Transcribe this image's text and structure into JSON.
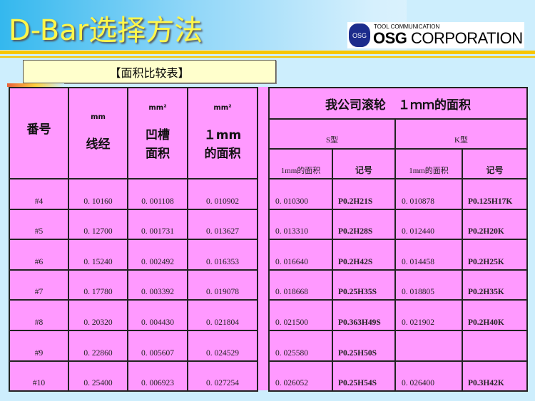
{
  "header": {
    "title": "D-Bar选择方法",
    "logo_sub": "TOOL COMMUNICATION",
    "logo_brand": "OSG",
    "logo_company": "CORPORATION",
    "logo_mark": "OSG"
  },
  "subtitle": "【面积比较表】",
  "left_table": {
    "headers": [
      {
        "unit": "",
        "label": "番号"
      },
      {
        "unit": "mm",
        "label": "线经"
      },
      {
        "unit": "mm²",
        "label": "凹槽\n面积"
      },
      {
        "unit": "mm²",
        "label": "１mm\n的面积"
      }
    ],
    "rows": [
      [
        "#4",
        "0. 10160",
        "0. 001108",
        "0. 010902"
      ],
      [
        "#5",
        "0. 12700",
        "0. 001731",
        "0. 013627"
      ],
      [
        "#6",
        "0. 15240",
        "0. 002492",
        "0. 016353"
      ],
      [
        "#7",
        "0. 17780",
        "0. 003392",
        "0. 019078"
      ],
      [
        "#8",
        "0. 20320",
        "0. 004430",
        "0. 021804"
      ],
      [
        "#9",
        "0. 22860",
        "0. 005607",
        "0. 024529"
      ],
      [
        "#10",
        "0. 25400",
        "0. 006923",
        "0. 027254"
      ]
    ]
  },
  "right_table": {
    "title": "我公司滚轮　１ｍｍ的面积",
    "groups": [
      "S型",
      "K型"
    ],
    "subheaders": [
      "1mm的面积",
      "记号",
      "1mm的面积",
      "记号"
    ],
    "rows": [
      [
        "0. 010300",
        "P0.2H21S",
        "0. 010878",
        "P0.125H17K"
      ],
      [
        "0. 013310",
        "P0.2H28S",
        "0. 012440",
        "P0.2H20K"
      ],
      [
        "0. 016640",
        "P0.2H42S",
        "0. 014458",
        "P0.2H25K"
      ],
      [
        "0. 018668",
        "P0.25H35S",
        "0. 018805",
        "P0.2H35K"
      ],
      [
        "0. 021500",
        "P0.363H49S",
        "0. 021902",
        "P0.2H40K"
      ],
      [
        "0. 025580",
        "P0.25H50S",
        "",
        ""
      ],
      [
        "0. 026052",
        "P0.25H54S",
        "0. 026400",
        "P0.3H42K"
      ]
    ]
  }
}
